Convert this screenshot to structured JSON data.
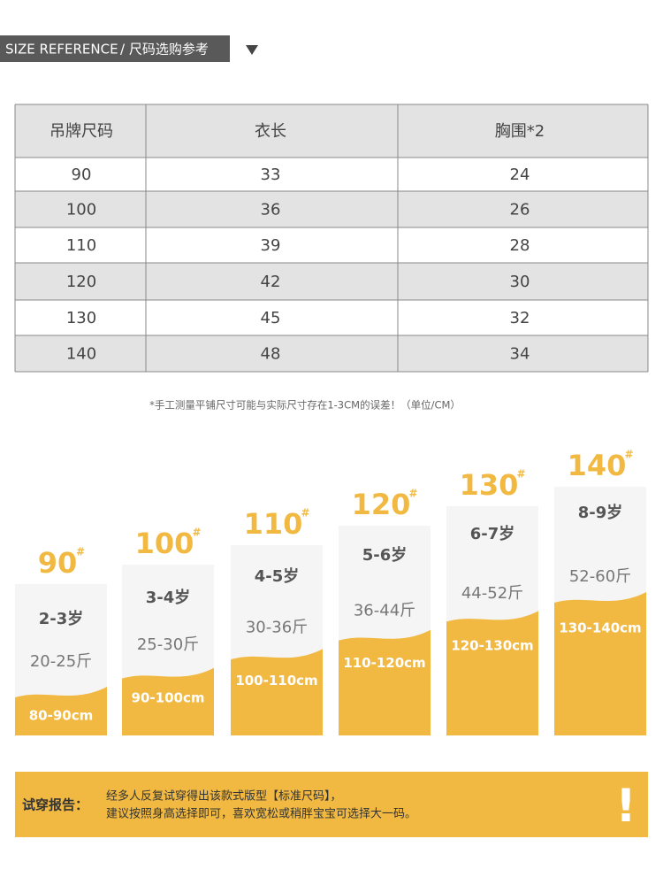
{
  "header": {
    "title_en": "SIZE  REFERENCE",
    "title_cn": "/ 尺码选购参考"
  },
  "table": {
    "columns": [
      "吊牌尺码",
      "衣长",
      "胸围*2"
    ],
    "rows": [
      [
        90,
        33,
        24
      ],
      [
        100,
        36,
        26
      ],
      [
        110,
        39,
        28
      ],
      [
        120,
        42,
        30
      ],
      [
        130,
        45,
        32
      ],
      [
        140,
        48,
        34
      ]
    ]
  },
  "note": "*手工测量平铺尺寸可能与实际尺寸存在1-3CM的误差！（单位/CM）",
  "size_mark": "#",
  "sizes": [
    {
      "size": 90,
      "age": "2-3岁",
      "weight": "20-25斤",
      "height": "80-90cm"
    },
    {
      "size": 100,
      "age": "3-4岁",
      "weight": "25-30斤",
      "height": "90-100cm"
    },
    {
      "size": 110,
      "age": "4-5岁",
      "weight": "30-36斤",
      "height": "100-110cm"
    },
    {
      "size": 120,
      "age": "5-6岁",
      "weight": "36-44斤",
      "height": "110-120cm"
    },
    {
      "size": 130,
      "age": "6-7岁",
      "weight": "44-52斤",
      "height": "120-130cm"
    },
    {
      "size": 140,
      "age": "8-9岁",
      "weight": "52-60斤",
      "height": "130-140cm"
    }
  ],
  "fit_report": {
    "label": "试穿报告：",
    "lines": [
      "经多人反复试穿得出该款式版型【标准尺码】，",
      "建议按照身高选择即可，喜欢宽松或稍胖宝宝可选择大一码。"
    ],
    "icon": "!"
  }
}
